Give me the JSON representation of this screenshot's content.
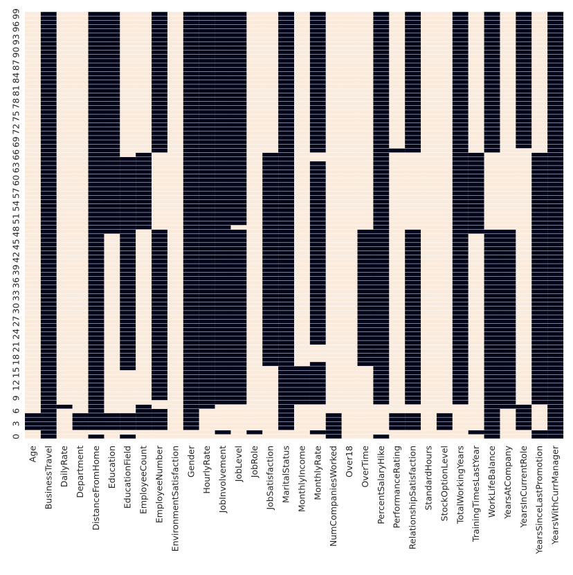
{
  "chart_data": {
    "type": "heatmap",
    "title": "",
    "xlabel": "",
    "ylabel": "",
    "colors": {
      "present": "#faebdd",
      "missing": "#03051a",
      "gridline": "#ffffff"
    },
    "columns": [
      "Age",
      "BusinessTravel",
      "DailyRate",
      "Department",
      "DistanceFromHome",
      "Education",
      "EducationField",
      "EmployeeCount",
      "EmployeeNumber",
      "EnvironmentSatisfaction",
      "Gender",
      "HourlyRate",
      "JobInvolvement",
      "JobLevel",
      "JobRole",
      "JobSatisfaction",
      "MaritalStatus",
      "MonthlyIncome",
      "MonthlyRate",
      "NumCompaniesWorked",
      "Over18",
      "OverTime",
      "PercentSalaryHike",
      "PerformanceRating",
      "RelationshipSatisfaction",
      "StandardHours",
      "StockOptionLevel",
      "TotalWorkingYears",
      "TrainingTimesLastYear",
      "WorkLifeBalance",
      "YearsAtCompany",
      "YearsInCurrentRole",
      "YearsSinceLastPromotion",
      "YearsWithCurrManager"
    ],
    "y_tick_labels": [
      "0",
      "3",
      "6",
      "9",
      "12",
      "15",
      "18",
      "21",
      "24",
      "27",
      "30",
      "33",
      "36",
      "39",
      "42",
      "45",
      "48",
      "51",
      "54",
      "57",
      "60",
      "63",
      "66",
      "69",
      "72",
      "75",
      "78",
      "81",
      "84",
      "87",
      "90",
      "93",
      "96",
      "99"
    ],
    "y_tick_step": 3,
    "row_count": 100,
    "missing_ranges": [
      [
        [
          2,
          5
        ]
      ],
      [
        [
          0,
          99
        ]
      ],
      [
        [
          7,
          7
        ]
      ],
      [
        [
          2,
          5
        ]
      ],
      [
        [
          0,
          0
        ],
        [
          2,
          99
        ]
      ],
      [
        [
          2,
          5
        ],
        [
          48,
          99
        ]
      ],
      [
        [
          0,
          0
        ],
        [
          2,
          5
        ],
        [
          16,
          65
        ]
      ],
      [
        [
          2,
          7
        ],
        [
          49,
          66
        ]
      ],
      [
        [
          2,
          6
        ],
        [
          9,
          48
        ],
        [
          67,
          99
        ]
      ],
      [],
      [
        [
          2,
          99
        ]
      ],
      [
        [
          7,
          99
        ]
      ],
      [
        [
          1,
          1
        ],
        [
          8,
          99
        ]
      ],
      [
        [
          8,
          48
        ],
        [
          50,
          99
        ]
      ],
      [
        [
          1,
          1
        ]
      ],
      [
        [
          17,
          66
        ]
      ],
      [
        [
          2,
          99
        ]
      ],
      [
        [
          8,
          16
        ]
      ],
      [
        [
          1,
          1
        ],
        [
          8,
          17
        ],
        [
          22,
          64
        ],
        [
          67,
          99
        ]
      ],
      [
        [
          0,
          5
        ]
      ],
      [],
      [
        [
          17,
          48
        ]
      ],
      [
        [
          0,
          0
        ],
        [
          8,
          99
        ]
      ],
      [
        [
          2,
          5
        ],
        [
          67,
          67
        ]
      ],
      [
        [
          2,
          5
        ],
        [
          8,
          48
        ],
        [
          67,
          99
        ]
      ],
      [],
      [
        [
          2,
          5
        ]
      ],
      [
        [
          8,
          99
        ]
      ],
      [
        [
          1,
          1
        ],
        [
          48,
          66
        ]
      ],
      [
        [
          0,
          48
        ],
        [
          67,
          99
        ]
      ],
      [
        [
          7,
          16
        ],
        [
          17,
          48
        ]
      ],
      [
        [
          2,
          7
        ],
        [
          68,
          99
        ]
      ],
      [
        [
          0,
          1
        ],
        [
          8,
          66
        ]
      ],
      [
        [
          0,
          99
        ]
      ]
    ]
  }
}
